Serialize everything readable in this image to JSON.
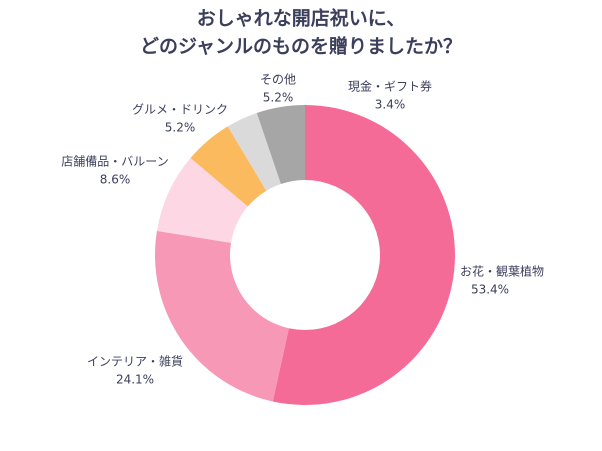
{
  "chart_data": {
    "type": "pie",
    "title": [
      "おしゃれな開店祝いに、",
      "どのジャンルのものを贈りましたか？"
    ],
    "categories": [
      "お花・観葉植物",
      "インテリア・雑貨",
      "店舗備品・バルーン",
      "グルメ・ドリンク",
      "現金・ギフト券",
      "その他"
    ],
    "values": [
      53.4,
      24.1,
      8.6,
      5.2,
      3.4,
      5.2
    ],
    "value_labels": [
      "53.4%",
      "24.1%",
      "8.6%",
      "5.2%",
      "3.4%",
      "5.2%"
    ],
    "colors": [
      "#f56b98",
      "#f698b6",
      "#fdd7e3",
      "#fcba5e",
      "#dadada",
      "#a6a6a6"
    ],
    "donut": true
  }
}
